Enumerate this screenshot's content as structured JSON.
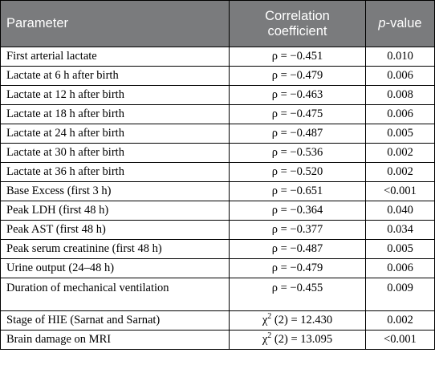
{
  "header": {
    "parameter": "Parameter",
    "correlation": "Correlation coefficient",
    "pvalue_italic": "p",
    "pvalue_rest": "-value"
  },
  "rows": [
    {
      "parameter": "First arterial lactate",
      "prefix": "ρ = ",
      "value": "−0.451",
      "p": "0.010"
    },
    {
      "parameter": "Lactate at 6 h after birth",
      "prefix": "ρ = ",
      "value": "−0.479",
      "p": "0.006"
    },
    {
      "parameter": "Lactate at 12 h after birth",
      "prefix": "ρ = ",
      "value": "−0.463",
      "p": "0.008"
    },
    {
      "parameter": "Lactate at 18 h after birth",
      "prefix": "ρ = ",
      "value": "−0.475",
      "p": "0.006"
    },
    {
      "parameter": "Lactate at 24 h after birth",
      "prefix": "ρ = ",
      "value": "−0.487",
      "p": "0.005"
    },
    {
      "parameter": "Lactate at 30 h after birth",
      "prefix": "ρ = ",
      "value": "−0.536",
      "p": "0.002"
    },
    {
      "parameter": "Lactate at 36 h after birth",
      "prefix": "ρ = ",
      "value": "−0.520",
      "p": "0.002"
    },
    {
      "parameter": "Base Excess (first 3 h)",
      "prefix": "ρ = ",
      "value": "−0.651",
      "p": "<0.001"
    },
    {
      "parameter": "Peak LDH (first 48 h)",
      "prefix": "ρ = ",
      "value": "−0.364",
      "p": "0.040"
    },
    {
      "parameter": "Peak AST (first 48 h)",
      "prefix": "ρ = ",
      "value": "−0.377",
      "p": "0.034"
    },
    {
      "parameter": "Peak serum creatinine (first 48 h)",
      "prefix": "ρ = ",
      "value": "−0.487",
      "p": "0.005"
    },
    {
      "parameter": "Urine output (24–48 h)",
      "prefix": "ρ = ",
      "value": "−0.479",
      "p": "0.006"
    },
    {
      "parameter": "Duration of mechanical ventilation",
      "prefix": "ρ = ",
      "value": "−0.455",
      "p": "0.009"
    },
    {
      "parameter": "Stage of HIE (Sarnat and Sarnat)",
      "prefix": "χ",
      "sup": "2",
      "suffix": " (2) = ",
      "value": "12.430",
      "p": "0.002"
    },
    {
      "parameter": "Brain damage on MRI",
      "prefix": "χ",
      "sup": "2",
      "suffix": " (2) = ",
      "value": "13.095",
      "p": "<0.001"
    }
  ]
}
